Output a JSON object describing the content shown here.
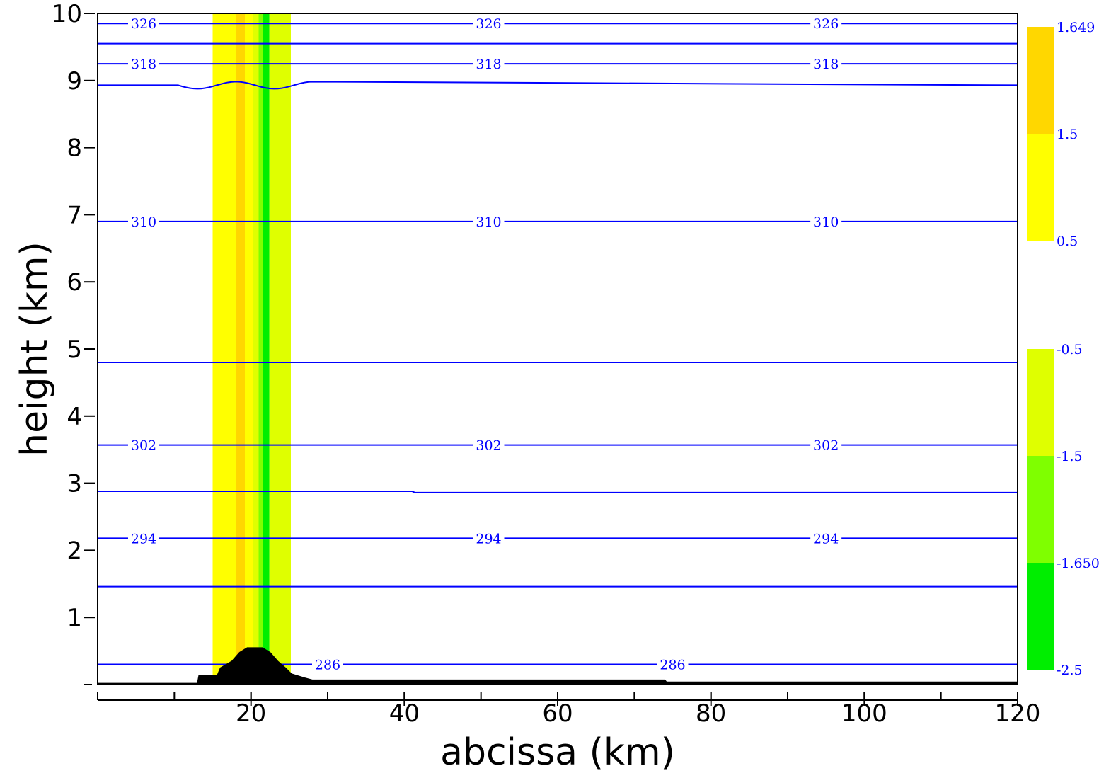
{
  "chart_data": {
    "type": "contour",
    "xlabel": "abcissa (km)",
    "ylabel": "height (km)",
    "xlim": [
      0,
      120
    ],
    "ylim": [
      0,
      10
    ],
    "xticks": [
      20,
      40,
      60,
      80,
      100,
      120
    ],
    "xticks_minor": [
      0,
      10,
      20,
      30,
      40,
      50,
      60,
      70,
      80,
      90,
      100,
      110,
      120
    ],
    "yticks": [
      1,
      2,
      3,
      4,
      5,
      6,
      7,
      8,
      9,
      10
    ],
    "colors": {
      "contour": "#0000ff",
      "terrain": "#000000",
      "orange": "#ffd700",
      "yellow": "#ffff00",
      "yellowgreen": "#dfff00",
      "lightgreen": "#7fff00",
      "green": "#00ee00"
    },
    "shaded_bands": [
      {
        "x0": 15.0,
        "x1": 18.0,
        "color": "yellow"
      },
      {
        "x0": 18.0,
        "x1": 19.2,
        "color": "orange"
      },
      {
        "x0": 19.2,
        "x1": 20.3,
        "color": "yellow"
      },
      {
        "x0": 20.3,
        "x1": 21.0,
        "color": "yellowgreen"
      },
      {
        "x0": 21.0,
        "x1": 21.6,
        "color": "lightgreen"
      },
      {
        "x0": 21.6,
        "x1": 22.4,
        "color": "green"
      },
      {
        "x0": 22.4,
        "x1": 25.2,
        "color": "yellowgreen"
      }
    ],
    "isentropes": [
      {
        "theta": "326",
        "height": 9.85,
        "labeled": true
      },
      {
        "theta": "",
        "height": 9.55,
        "labeled": false
      },
      {
        "theta": "318",
        "height": 9.25,
        "labeled": true
      },
      {
        "theta": "",
        "height": 8.93,
        "labeled": false,
        "wavy": true
      },
      {
        "theta": "310",
        "height": 6.9,
        "labeled": true
      },
      {
        "theta": "",
        "height": 4.8,
        "labeled": false
      },
      {
        "theta": "302",
        "height": 3.57,
        "labeled": true
      },
      {
        "theta": "",
        "height": 2.88,
        "labeled": false,
        "step_at_x": 41,
        "step_to": 2.86
      },
      {
        "theta": "294",
        "height": 2.18,
        "labeled": true
      },
      {
        "theta": "",
        "height": 1.46,
        "labeled": false
      },
      {
        "theta": "286",
        "height": 0.3,
        "labeled": true,
        "label_x": [
          30,
          75
        ]
      }
    ],
    "label_x_positions": [
      6,
      51,
      95
    ],
    "terrain_profile": [
      [
        0,
        0.02
      ],
      [
        13,
        0.02
      ],
      [
        13.2,
        0.14
      ],
      [
        15.6,
        0.14
      ],
      [
        16,
        0.25
      ],
      [
        17.5,
        0.35
      ],
      [
        18.5,
        0.48
      ],
      [
        19.5,
        0.55
      ],
      [
        21.5,
        0.55
      ],
      [
        22.5,
        0.48
      ],
      [
        23.5,
        0.35
      ],
      [
        24.5,
        0.25
      ],
      [
        25.3,
        0.16
      ],
      [
        27,
        0.1
      ],
      [
        28,
        0.07
      ],
      [
        74,
        0.07
      ],
      [
        74.2,
        0.04
      ],
      [
        120,
        0.04
      ],
      [
        120,
        0
      ],
      [
        0,
        0
      ]
    ],
    "colorbar_positive": {
      "labels": [
        "1.649",
        "1.5",
        "0.5"
      ],
      "segments": [
        {
          "from": "1.649",
          "to": "1.5",
          "color": "orange"
        },
        {
          "from": "1.5",
          "to": "0.5",
          "color": "yellow"
        }
      ]
    },
    "colorbar_negative": {
      "labels": [
        "-0.5",
        "-1.5",
        "-1.650",
        "-2.5"
      ],
      "segments": [
        {
          "from": "-0.5",
          "to": "-1.5",
          "color": "yellowgreen"
        },
        {
          "from": "-1.5",
          "to": "-1.650",
          "color": "lightgreen"
        },
        {
          "from": "-1.650",
          "to": "-2.5",
          "color": "green"
        }
      ]
    }
  }
}
